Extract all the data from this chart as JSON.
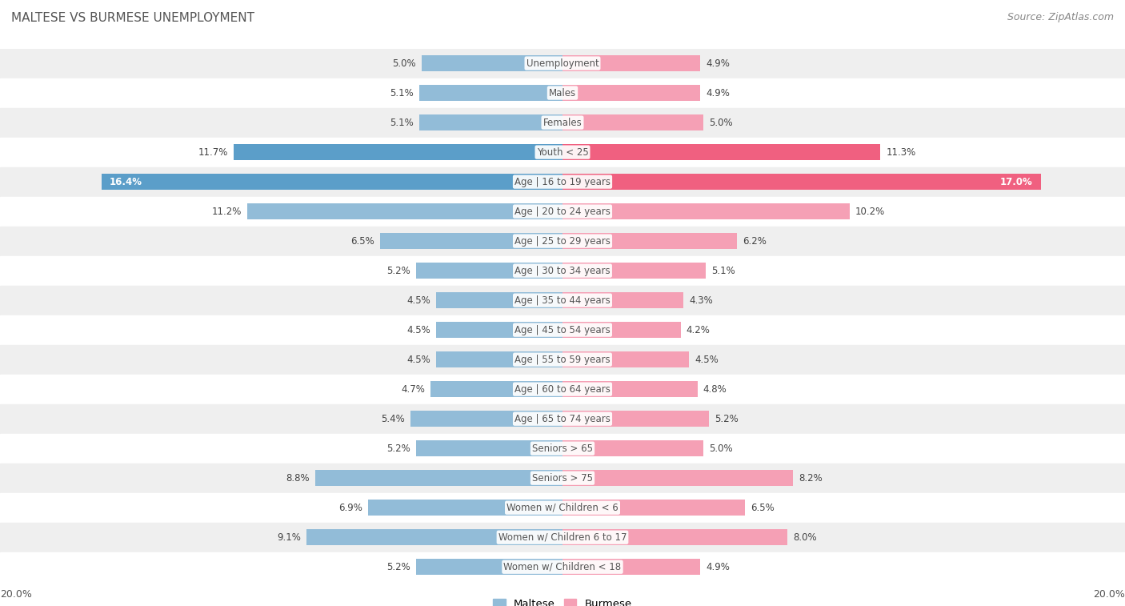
{
  "title": "MALTESE VS BURMESE UNEMPLOYMENT",
  "source": "Source: ZipAtlas.com",
  "categories": [
    "Unemployment",
    "Males",
    "Females",
    "Youth < 25",
    "Age | 16 to 19 years",
    "Age | 20 to 24 years",
    "Age | 25 to 29 years",
    "Age | 30 to 34 years",
    "Age | 35 to 44 years",
    "Age | 45 to 54 years",
    "Age | 55 to 59 years",
    "Age | 60 to 64 years",
    "Age | 65 to 74 years",
    "Seniors > 65",
    "Seniors > 75",
    "Women w/ Children < 6",
    "Women w/ Children 6 to 17",
    "Women w/ Children < 18"
  ],
  "maltese": [
    5.0,
    5.1,
    5.1,
    11.7,
    16.4,
    11.2,
    6.5,
    5.2,
    4.5,
    4.5,
    4.5,
    4.7,
    5.4,
    5.2,
    8.8,
    6.9,
    9.1,
    5.2
  ],
  "burmese": [
    4.9,
    4.9,
    5.0,
    11.3,
    17.0,
    10.2,
    6.2,
    5.1,
    4.3,
    4.2,
    4.5,
    4.8,
    5.2,
    5.0,
    8.2,
    6.5,
    8.0,
    4.9
  ],
  "maltese_color": "#92bcd8",
  "burmese_color": "#f5a0b5",
  "maltese_color_bright": "#5b9ec9",
  "burmese_color_bright": "#f06080",
  "row_bg_even": "#efefef",
  "row_bg_odd": "#ffffff",
  "xlim": 20.0,
  "legend_label_maltese": "Maltese",
  "legend_label_burmese": "Burmese",
  "x_label": "20.0%"
}
